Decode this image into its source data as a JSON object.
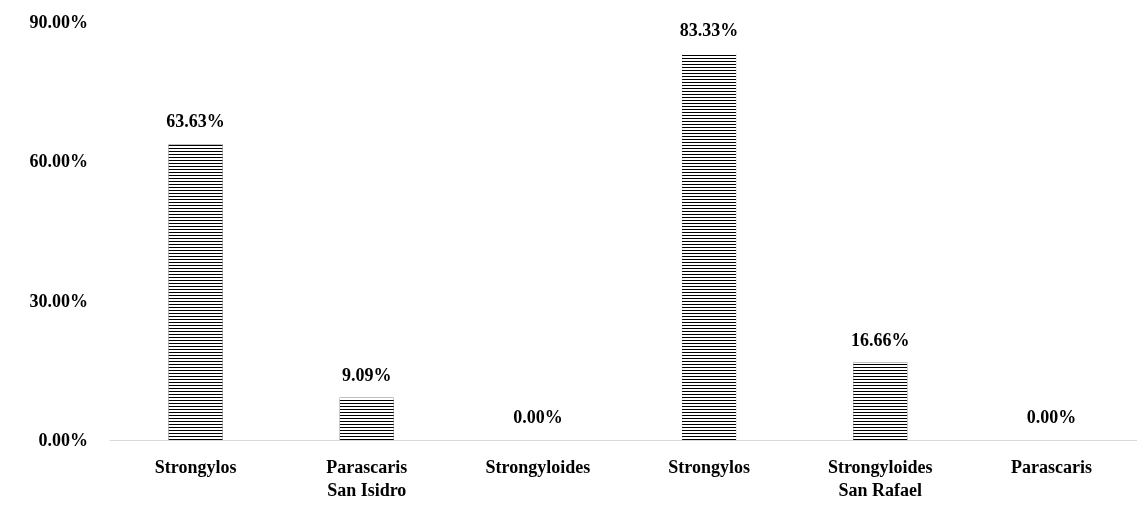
{
  "chart_data": {
    "type": "bar",
    "categories": [
      "Strongylos",
      "Parascaris",
      "Strongyloides",
      "Strongylos",
      "Strongyloides",
      "Parascaris"
    ],
    "values": [
      63.63,
      9.09,
      0,
      83.33,
      16.66,
      0
    ],
    "value_labels": [
      "63.63%",
      "9.09%",
      "0.00%",
      "83.33%",
      "16.66%",
      "0.00%"
    ],
    "color": "#000000",
    "ylim": [
      0,
      90
    ],
    "yticks": [
      {
        "value": 0,
        "label": "0.00%"
      },
      {
        "value": 30,
        "label": "30.00%"
      },
      {
        "value": 60,
        "label": "60.00%"
      },
      {
        "value": 90,
        "label": "90.00%"
      }
    ],
    "annotations": [
      "San Isidro",
      "San Rafael"
    ],
    "grid": false
  }
}
